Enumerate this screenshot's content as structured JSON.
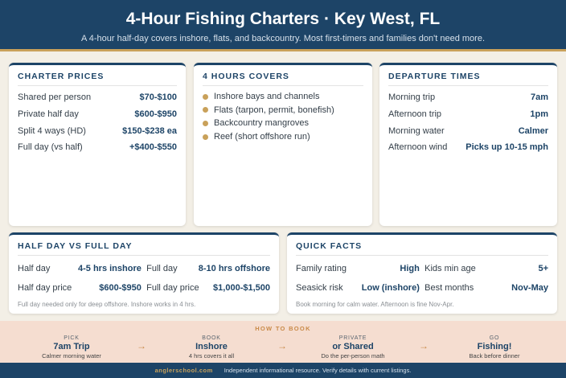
{
  "header": {
    "title": "4-Hour Fishing Charters · Key West, FL",
    "subtitle": "A 4-hour half-day covers inshore, flats, and backcountry. Most first-timers and families don't need more."
  },
  "prices": {
    "title": "CHARTER PRICES",
    "rows": [
      {
        "k": "Shared per person",
        "v": "$70-$100"
      },
      {
        "k": "Private half day",
        "v": "$600-$950"
      },
      {
        "k": "Split 4 ways (HD)",
        "v": "$150-$238 ea"
      },
      {
        "k": "Full day (vs half)",
        "v": "+$400-$550"
      }
    ]
  },
  "covers": {
    "title": "4 HOURS COVERS",
    "items": [
      "Inshore bays and channels",
      "Flats (tarpon, permit, bonefish)",
      "Backcountry mangroves",
      "Reef (short offshore run)"
    ]
  },
  "departure": {
    "title": "DEPARTURE TIMES",
    "rows": [
      {
        "k": "Morning trip",
        "v": "7am"
      },
      {
        "k": "Afternoon trip",
        "v": "1pm"
      },
      {
        "k": "Morning water",
        "v": "Calmer"
      },
      {
        "k": "Afternoon wind",
        "v": "Picks up 10-15 mph"
      }
    ]
  },
  "halffull": {
    "title": "HALF DAY VS FULL DAY",
    "left": [
      {
        "k": "Half day",
        "v": "4-5 hrs inshore"
      },
      {
        "k": "Half day price",
        "v": "$600-$950"
      }
    ],
    "right": [
      {
        "k": "Full day",
        "v": "8-10 hrs offshore"
      },
      {
        "k": "Full day price",
        "v": "$1,000-$1,500"
      }
    ],
    "note": "Full day needed only for deep offshore. Inshore works in 4 hrs."
  },
  "facts": {
    "title": "QUICK FACTS",
    "left": [
      {
        "k": "Family rating",
        "v": "High"
      },
      {
        "k": "Seasick risk",
        "v": "Low (inshore)"
      }
    ],
    "right": [
      {
        "k": "Kids min age",
        "v": "5+"
      },
      {
        "k": "Best months",
        "v": "Nov-May"
      }
    ],
    "note": "Book morning for calm water. Afternoon is fine Nov-Apr."
  },
  "howto": {
    "label": "HOW TO BOOK",
    "steps": [
      {
        "t1": "PICK",
        "t2": "7am Trip",
        "t3": "Calmer morning water"
      },
      {
        "t1": "BOOK",
        "t2": "Inshore",
        "t3": "4 hrs covers it all"
      },
      {
        "t1": "PRIVATE",
        "t2": "or Shared",
        "t3": "Do the per-person math"
      },
      {
        "t1": "GO",
        "t2": "Fishing!",
        "t3": "Back before dinner"
      }
    ],
    "arrow": "→"
  },
  "footer": {
    "site": "anglerschool.com",
    "disclaimer": "Independent informational resource. Verify details with current listings."
  }
}
